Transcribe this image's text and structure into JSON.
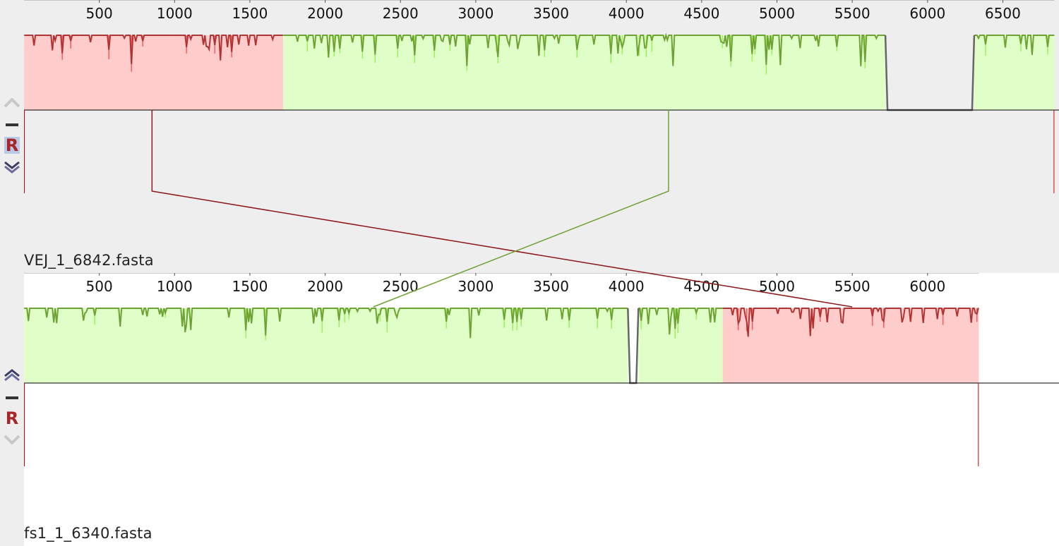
{
  "app": {
    "view": "Mauve alignment viewer"
  },
  "colors": {
    "block_red_fill": "#ffcccc",
    "block_red_line": "#b03434",
    "block_red_light": "#ff5a5a",
    "block_green_fill": "#e0ffc8",
    "block_green_line": "#6fa235",
    "block_green_light": "#9cf25a",
    "gap_line": "#666666",
    "panel_bg": "#eeeeee",
    "tick_text": "#111111",
    "accent_r": "#a6262a",
    "r_selected_bg": "#b9c9e6"
  },
  "genomes": [
    {
      "id": "g1",
      "name": "VEJ_1_6842.fasta",
      "length": 6842,
      "ticks": [
        "500",
        "1000",
        "1500",
        "2000",
        "2500",
        "3000",
        "3500",
        "4000",
        "4500",
        "5000",
        "5500",
        "6000",
        "6500"
      ],
      "r_selected": true,
      "up_enabled": false,
      "down_enabled": true,
      "blocks": [
        {
          "color": "red",
          "start": 1,
          "end": 1720,
          "strand": "+"
        },
        {
          "color": "green",
          "start": 1722,
          "end": 5720,
          "strand": "+"
        },
        {
          "color": "green",
          "start": 6310,
          "end": 6842,
          "strand": "+"
        }
      ],
      "gaps": [
        {
          "start": 5720,
          "end": 6310
        }
      ]
    },
    {
      "id": "g2",
      "name": "fs1_1_6340.fasta",
      "length": 6340,
      "ticks": [
        "500",
        "1000",
        "1500",
        "2000",
        "2500",
        "3000",
        "3500",
        "4000",
        "4500",
        "5000",
        "5500",
        "6000"
      ],
      "r_selected": false,
      "up_enabled": true,
      "down_enabled": false,
      "blocks": [
        {
          "color": "green",
          "start": 1,
          "end": 4010,
          "strand": "+"
        },
        {
          "color": "green",
          "start": 4080,
          "end": 4640,
          "strand": "+"
        },
        {
          "color": "red",
          "start": 4640,
          "end": 6340,
          "strand": "+"
        }
      ],
      "gaps": [
        {
          "start": 4010,
          "end": 4080
        }
      ]
    }
  ],
  "connections": [
    {
      "color": "red",
      "from_position": 850,
      "to_position": 5500
    },
    {
      "color": "green",
      "from_position": 4280,
      "to_position": 2320
    }
  ],
  "icons": {
    "up": "chevron-up-icon",
    "minus": "minus-icon",
    "r": "r-reverse-icon",
    "down": "chevron-down-icon"
  },
  "r_label": "R"
}
